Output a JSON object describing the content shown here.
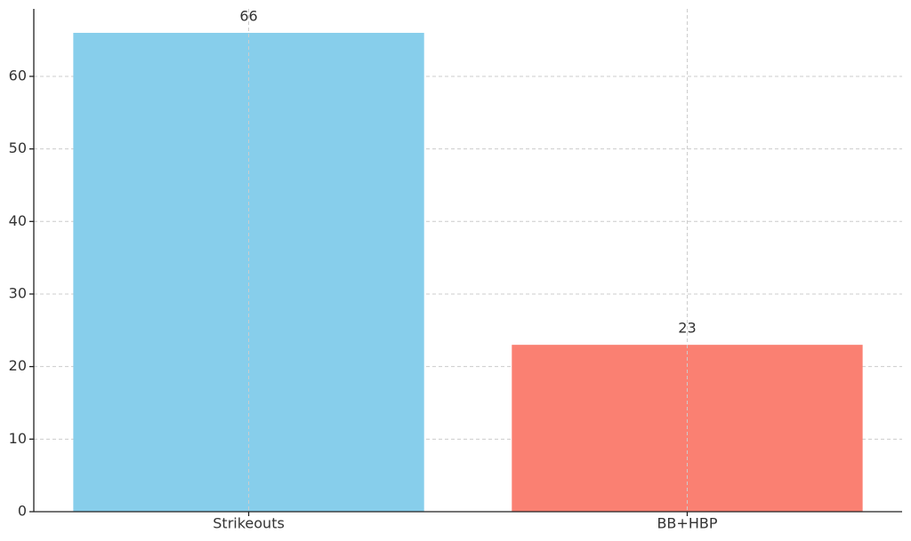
{
  "chart_data": {
    "type": "bar",
    "categories": [
      "Strikeouts",
      "BB+HBP"
    ],
    "values": [
      66,
      23
    ],
    "colors": [
      "#87ceeb",
      "#fa8072"
    ],
    "ylim": [
      0,
      69.3
    ],
    "yticks": [
      0,
      10,
      20,
      30,
      40,
      50,
      60
    ],
    "grid": true,
    "data_labels": true
  }
}
